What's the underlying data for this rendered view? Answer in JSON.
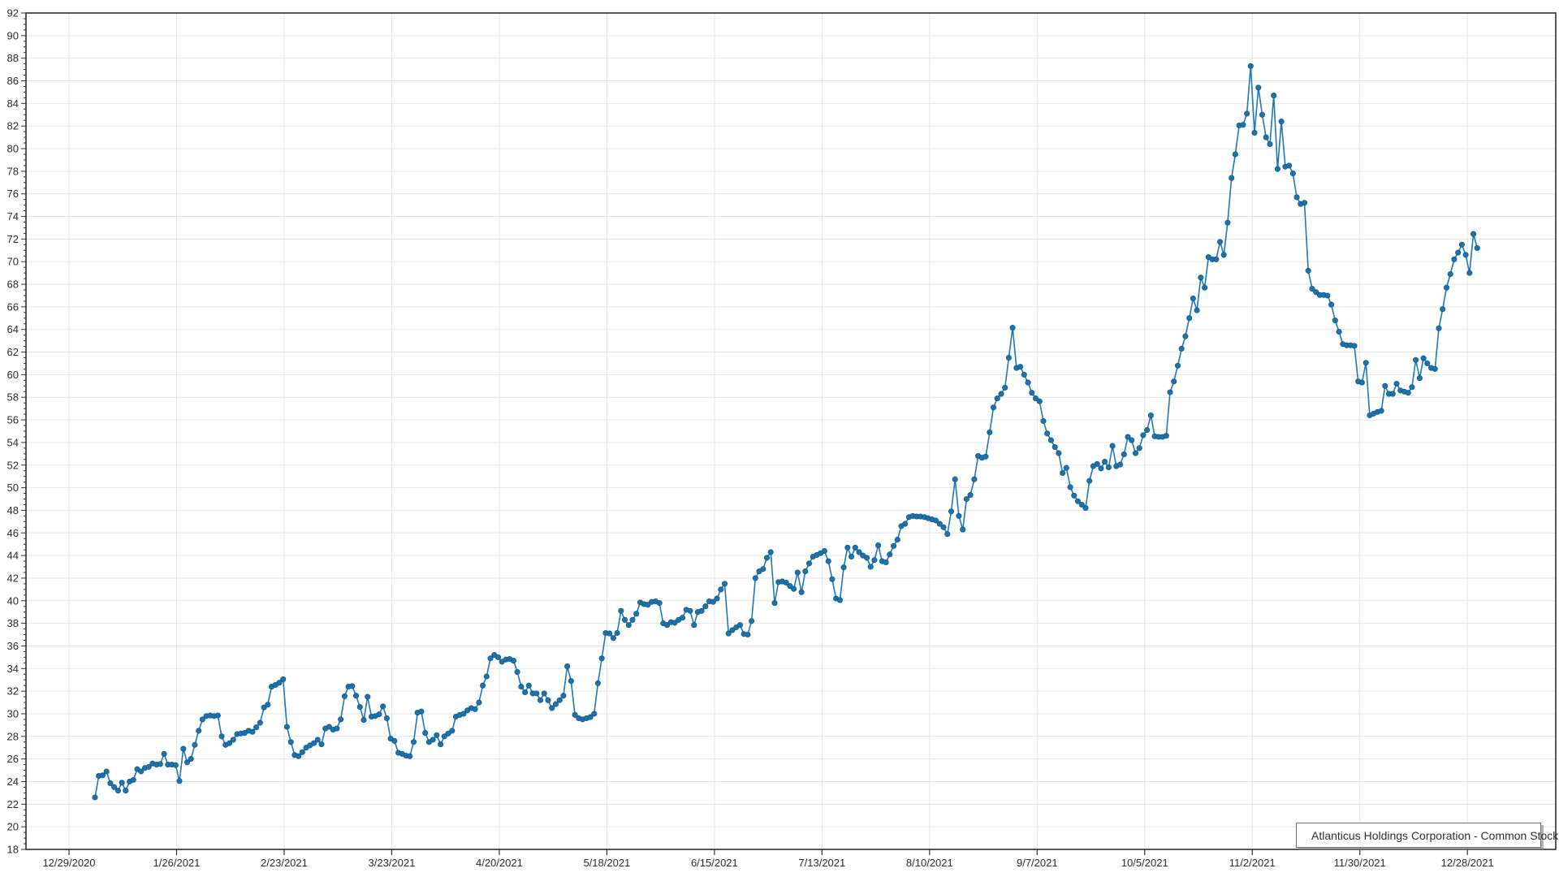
{
  "chart_data": {
    "type": "line",
    "title": "",
    "xlabel": "",
    "ylabel": "",
    "grid": true,
    "legend_position": "bottom-right",
    "y_axis": {
      "min": 18,
      "max": 92,
      "tick_step": 2,
      "minor_tick_step": 0.5
    },
    "x_axis": {
      "tick_labels": [
        "12/29/2020",
        "1/26/2021",
        "2/23/2021",
        "3/23/2021",
        "4/20/2021",
        "5/18/2021",
        "6/15/2021",
        "7/13/2021",
        "8/10/2021",
        "9/7/2021",
        "10/5/2021",
        "11/2/2021",
        "11/30/2021",
        "12/28/2021"
      ]
    },
    "series": [
      {
        "name": "Atlanticus Holdings Corporation - Common Stock",
        "color": "#1f77b4",
        "marker_color": "#1e73ae",
        "values": [
          22.6,
          24.5,
          24.55,
          24.9,
          23.85,
          23.5,
          23.2,
          23.9,
          23.2,
          24.0,
          24.15,
          25.1,
          24.9,
          25.2,
          25.3,
          25.6,
          25.5,
          25.55,
          26.45,
          25.5,
          25.5,
          25.45,
          24.05,
          26.9,
          25.7,
          26.0,
          27.25,
          28.5,
          29.5,
          29.8,
          29.85,
          29.8,
          29.85,
          28.0,
          27.25,
          27.4,
          27.7,
          28.2,
          28.25,
          28.3,
          28.5,
          28.4,
          28.8,
          29.2,
          30.55,
          30.8,
          32.4,
          32.55,
          32.75,
          33.05,
          28.85,
          27.5,
          26.35,
          26.25,
          26.6,
          27.0,
          27.2,
          27.4,
          27.7,
          27.3,
          28.7,
          28.85,
          28.6,
          28.7,
          29.5,
          31.55,
          32.4,
          32.45,
          31.6,
          30.6,
          29.45,
          31.5,
          29.75,
          29.8,
          29.95,
          30.65,
          29.6,
          27.8,
          27.6,
          26.55,
          26.45,
          26.3,
          26.25,
          27.5,
          30.1,
          30.2,
          28.3,
          27.5,
          27.7,
          28.1,
          27.3,
          28.0,
          28.25,
          28.5,
          29.75,
          29.9,
          30.0,
          30.3,
          30.5,
          30.4,
          31.0,
          32.5,
          33.3,
          34.9,
          35.2,
          35.0,
          34.6,
          34.8,
          34.85,
          34.7,
          33.7,
          32.4,
          31.9,
          32.5,
          31.8,
          31.8,
          31.2,
          31.8,
          31.2,
          30.5,
          30.85,
          31.2,
          31.6,
          34.2,
          32.9,
          29.9,
          29.6,
          29.5,
          29.6,
          29.7,
          30.0,
          32.7,
          34.9,
          37.15,
          37.1,
          36.7,
          37.15,
          39.1,
          38.3,
          37.85,
          38.3,
          38.85,
          39.85,
          39.7,
          39.65,
          39.9,
          39.95,
          39.8,
          38.0,
          37.85,
          38.1,
          38.05,
          38.3,
          38.5,
          39.2,
          39.1,
          37.85,
          39.0,
          39.1,
          39.5,
          39.95,
          39.9,
          40.2,
          41.0,
          41.5,
          37.1,
          37.4,
          37.65,
          37.85,
          37.05,
          37.0,
          38.2,
          42.0,
          42.6,
          42.8,
          43.8,
          44.3,
          39.8,
          41.65,
          41.7,
          41.6,
          41.3,
          41.05,
          42.5,
          40.75,
          42.6,
          43.3,
          43.9,
          44.05,
          44.2,
          44.4,
          43.5,
          41.9,
          40.2,
          40.05,
          42.95,
          44.7,
          43.9,
          44.7,
          44.3,
          44.0,
          43.8,
          43.0,
          43.6,
          44.9,
          43.5,
          43.4,
          44.1,
          44.85,
          45.4,
          46.6,
          46.8,
          47.4,
          47.5,
          47.45,
          47.45,
          47.4,
          47.3,
          47.2,
          47.1,
          46.8,
          46.5,
          45.9,
          47.9,
          50.75,
          47.5,
          46.3,
          49.0,
          49.35,
          50.75,
          52.8,
          52.65,
          52.75,
          54.9,
          57.1,
          57.9,
          58.3,
          58.85,
          61.5,
          64.15,
          60.6,
          60.7,
          60.0,
          59.3,
          58.4,
          57.9,
          57.65,
          55.9,
          54.8,
          54.2,
          53.6,
          53.05,
          51.3,
          51.75,
          50.05,
          49.3,
          48.8,
          48.5,
          48.2,
          50.6,
          51.9,
          52.1,
          51.7,
          52.3,
          51.8,
          53.7,
          51.9,
          52.05,
          52.95,
          54.5,
          54.2,
          53.05,
          53.5,
          54.65,
          55.1,
          56.4,
          54.55,
          54.5,
          54.5,
          54.6,
          58.45,
          59.4,
          60.8,
          62.3,
          63.4,
          65.0,
          66.75,
          65.7,
          68.6,
          67.7,
          70.4,
          70.2,
          70.2,
          71.75,
          70.6,
          73.45,
          77.4,
          79.5,
          82.05,
          82.1,
          83.1,
          87.3,
          81.4,
          85.4,
          83.0,
          81.0,
          80.4,
          84.7,
          78.2,
          82.4,
          78.4,
          78.5,
          77.8,
          75.7,
          75.1,
          75.2,
          69.2,
          67.6,
          67.3,
          67.05,
          67.05,
          67.0,
          66.2,
          64.8,
          63.8,
          62.7,
          62.6,
          62.6,
          62.55,
          59.4,
          59.3,
          61.05,
          56.4,
          56.55,
          56.7,
          56.8,
          59.0,
          58.3,
          58.3,
          59.2,
          58.6,
          58.5,
          58.4,
          58.9,
          61.3,
          59.7,
          61.45,
          61.0,
          60.6,
          60.5,
          64.1,
          65.8,
          67.7,
          68.9,
          70.2,
          70.8,
          71.5,
          70.6,
          69.0,
          72.45,
          71.2
        ]
      }
    ],
    "legend": {
      "label": "Atlanticus Holdings Corporation - Common Stock"
    }
  },
  "colors": {
    "grid": "#e3e3e3",
    "axis": "#2e2e2e",
    "line": "#1f77b4",
    "marker_fill": "#1e73ae",
    "marker_stroke": "#0f5c8c",
    "text": "#2b2b2b"
  }
}
